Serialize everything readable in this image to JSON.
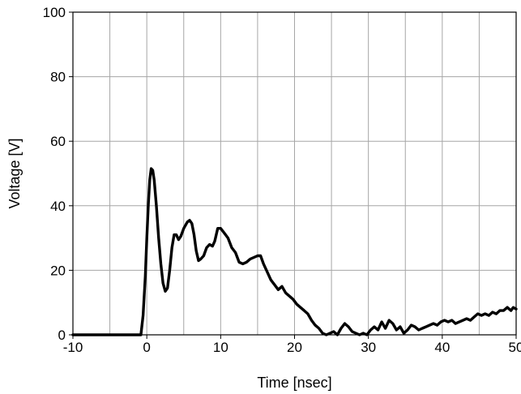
{
  "chart_data": {
    "type": "line",
    "title": "",
    "xlabel": "Time [nsec]",
    "ylabel": "Voltage [V]",
    "xlim": [
      -10,
      50
    ],
    "ylim": [
      0,
      100
    ],
    "xticks": [
      -10,
      0,
      10,
      20,
      30,
      40,
      50
    ],
    "yticks": [
      0,
      20,
      40,
      60,
      80,
      100
    ],
    "grid": true,
    "legend": "none",
    "series": [
      {
        "color": "#000000",
        "points": [
          [
            -10,
            0
          ],
          [
            -1,
            0
          ],
          [
            -0.8,
            0
          ],
          [
            -0.5,
            6
          ],
          [
            -0.2,
            18
          ],
          [
            0,
            30
          ],
          [
            0.2,
            40
          ],
          [
            0.4,
            48
          ],
          [
            0.6,
            51.5
          ],
          [
            0.8,
            51
          ],
          [
            1.0,
            48
          ],
          [
            1.3,
            40
          ],
          [
            1.6,
            30
          ],
          [
            1.9,
            22
          ],
          [
            2.2,
            16
          ],
          [
            2.5,
            13.5
          ],
          [
            2.8,
            14.5
          ],
          [
            3.1,
            20
          ],
          [
            3.4,
            27
          ],
          [
            3.7,
            31
          ],
          [
            4.0,
            31
          ],
          [
            4.3,
            29.5
          ],
          [
            4.6,
            30.5
          ],
          [
            5.0,
            33
          ],
          [
            5.5,
            35
          ],
          [
            5.8,
            35.5
          ],
          [
            6.1,
            34.5
          ],
          [
            6.4,
            31
          ],
          [
            6.7,
            26
          ],
          [
            7.0,
            23
          ],
          [
            7.3,
            23.5
          ],
          [
            7.7,
            24.5
          ],
          [
            8.1,
            27
          ],
          [
            8.5,
            28
          ],
          [
            8.9,
            27.5
          ],
          [
            9.2,
            29
          ],
          [
            9.6,
            33
          ],
          [
            10.0,
            33
          ],
          [
            10.5,
            31.5
          ],
          [
            11.0,
            30
          ],
          [
            11.5,
            27
          ],
          [
            12.0,
            25.5
          ],
          [
            12.5,
            22.5
          ],
          [
            13.0,
            22
          ],
          [
            13.5,
            22.5
          ],
          [
            14.0,
            23.5
          ],
          [
            14.5,
            24
          ],
          [
            15.0,
            24.5
          ],
          [
            15.4,
            24.5
          ],
          [
            15.8,
            22
          ],
          [
            16.3,
            19.5
          ],
          [
            16.8,
            17
          ],
          [
            17.3,
            15.5
          ],
          [
            17.8,
            14
          ],
          [
            18.3,
            15
          ],
          [
            18.8,
            13
          ],
          [
            19.3,
            12
          ],
          [
            19.8,
            11
          ],
          [
            20.3,
            9.5
          ],
          [
            20.8,
            8.5
          ],
          [
            21.3,
            7.5
          ],
          [
            21.8,
            6.5
          ],
          [
            22.3,
            4.5
          ],
          [
            22.8,
            3
          ],
          [
            23.3,
            2
          ],
          [
            23.8,
            0.5
          ],
          [
            24.3,
            0
          ],
          [
            24.8,
            0.5
          ],
          [
            25.3,
            1
          ],
          [
            25.8,
            0
          ],
          [
            26.3,
            2
          ],
          [
            26.8,
            3.5
          ],
          [
            27.3,
            2.5
          ],
          [
            27.8,
            1
          ],
          [
            28.3,
            0.5
          ],
          [
            28.8,
            0
          ],
          [
            29.3,
            0.5
          ],
          [
            29.8,
            0
          ],
          [
            30.3,
            1.5
          ],
          [
            30.8,
            2.5
          ],
          [
            31.3,
            1.5
          ],
          [
            31.8,
            4
          ],
          [
            32.3,
            2
          ],
          [
            32.8,
            4.5
          ],
          [
            33.3,
            3.5
          ],
          [
            33.8,
            1.5
          ],
          [
            34.3,
            2.5
          ],
          [
            34.8,
            0.5
          ],
          [
            35.3,
            1.5
          ],
          [
            35.8,
            3
          ],
          [
            36.3,
            2.5
          ],
          [
            36.8,
            1.5
          ],
          [
            37.3,
            2
          ],
          [
            37.8,
            2.5
          ],
          [
            38.3,
            3
          ],
          [
            38.8,
            3.5
          ],
          [
            39.3,
            3
          ],
          [
            39.8,
            4
          ],
          [
            40.3,
            4.5
          ],
          [
            40.8,
            4
          ],
          [
            41.3,
            4.5
          ],
          [
            41.8,
            3.5
          ],
          [
            42.3,
            4
          ],
          [
            42.8,
            4.5
          ],
          [
            43.3,
            5
          ],
          [
            43.8,
            4.5
          ],
          [
            44.3,
            5.5
          ],
          [
            44.8,
            6.5
          ],
          [
            45.3,
            6
          ],
          [
            45.8,
            6.5
          ],
          [
            46.3,
            6
          ],
          [
            46.8,
            7
          ],
          [
            47.3,
            6.5
          ],
          [
            47.8,
            7.5
          ],
          [
            48.3,
            7.5
          ],
          [
            48.8,
            8.5
          ],
          [
            49.3,
            7.5
          ],
          [
            49.6,
            8.5
          ],
          [
            50,
            8
          ]
        ]
      }
    ]
  }
}
